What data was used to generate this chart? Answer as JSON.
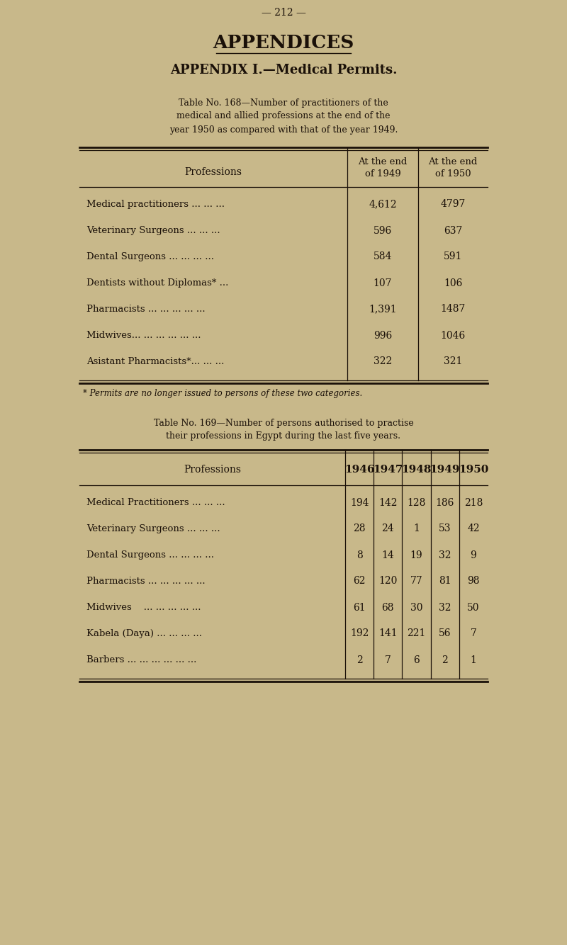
{
  "bg_color": "#c8b88a",
  "text_color": "#1a1008",
  "page_number": "— 212 —",
  "main_title": "APPENDICES",
  "subtitle": "APPENDIX I.—Medical Permits.",
  "table1_caption_line1": "Table No. 168—Number of practitioners of the",
  "table1_caption_line2": "medical and allied professions at the end of the",
  "table1_caption_line3": "year 1950 as compared with that of the year 1949.",
  "table1_rows": [
    [
      "Medical practitioners ... ... ...",
      "4,612",
      "4797"
    ],
    [
      "Veterinary Surgeons ... ... ...",
      "596",
      "637"
    ],
    [
      "Dental Surgeons ... ... ... ...",
      "584",
      "591"
    ],
    [
      "Dentists without Diplomas* ...",
      "107",
      "106"
    ],
    [
      "Pharmacists ... ... ... ... ...",
      "1,391",
      "1487"
    ],
    [
      "Midwives... ... ... ... ... ...",
      "996",
      "1046"
    ],
    [
      "Asistant Pharmacists*... ... ...",
      "322",
      "321"
    ]
  ],
  "table1_footnote": "* Permits are no longer issued to persons of these two categories.",
  "table2_caption_line1": "Table No. 169—Number of persons authorised to practise",
  "table2_caption_line2": "their professions in Egypt during the last five years.",
  "table2_year_headers": [
    "1946",
    "1947",
    "1948",
    "1949",
    "1950"
  ],
  "table2_rows": [
    [
      "Medical Practitioners ... ... ...",
      "194",
      "142",
      "128",
      "186",
      "218"
    ],
    [
      "Veterinary Surgeons ... ... ...",
      "28",
      "24",
      "1",
      "53",
      "42"
    ],
    [
      "Dental Surgeons ... ... ... ...",
      "8",
      "14",
      "19",
      "32",
      "9"
    ],
    [
      "Pharmacists ... ... ... ... ...",
      "62",
      "120",
      "77",
      "81",
      "98"
    ],
    [
      "Midwives    ... ... ... ... ...",
      "61",
      "68",
      "30",
      "32",
      "50"
    ],
    [
      "Kabela (Daya) ... ... ... ...",
      "192",
      "141",
      "221",
      "56",
      "7"
    ],
    [
      "Barbers ... ... ... ... ... ...",
      "2",
      "7",
      "6",
      "2",
      "1"
    ]
  ]
}
